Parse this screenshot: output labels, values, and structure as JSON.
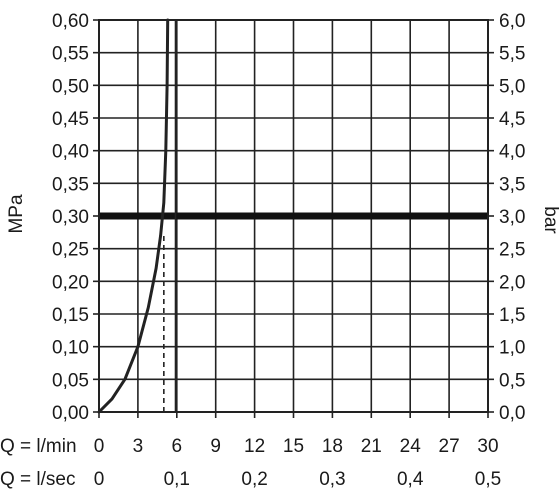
{
  "chart_data": {
    "type": "line",
    "x_unit": "l/min",
    "x_range": [
      0,
      30
    ],
    "x_ticks": [
      0,
      3,
      6,
      9,
      12,
      15,
      18,
      21,
      24,
      27,
      30
    ],
    "x_tick_labels": [
      "0",
      "3",
      "6",
      "9",
      "12",
      "15",
      "18",
      "21",
      "24",
      "27",
      "30"
    ],
    "x_row1_label": "Q = l/min",
    "x_row2_label": "Q = l/sec",
    "x_sec_ticks": [
      0,
      0.1,
      0.2,
      0.3,
      0.4,
      0.5
    ],
    "x_sec_tick_labels": [
      "0",
      "0,1",
      "0,2",
      "0,3",
      "0,4",
      "0,5"
    ],
    "y_left_label": "MPa",
    "y_left_range": [
      0,
      0.6
    ],
    "y_left_ticks": [
      0,
      0.05,
      0.1,
      0.15,
      0.2,
      0.25,
      0.3,
      0.35,
      0.4,
      0.45,
      0.5,
      0.55,
      0.6
    ],
    "y_left_tick_labels": [
      "0,00",
      "0,05",
      "0,10",
      "0,15",
      "0,20",
      "0,25",
      "0,30",
      "0,35",
      "0,40",
      "0,45",
      "0,50",
      "0,55",
      "0,60"
    ],
    "y_right_label": "bar",
    "y_right_ticks": [
      0,
      0.5,
      1,
      1.5,
      2,
      2.5,
      3,
      3.5,
      4,
      4.5,
      5,
      5.5,
      6
    ],
    "y_right_tick_labels": [
      "0,0",
      "0,5",
      "1,0",
      "1,5",
      "2,0",
      "2,5",
      "3,0",
      "3,5",
      "4,0",
      "4,5",
      "5,0",
      "5,5",
      "6,0"
    ],
    "grid": true,
    "series": [
      {
        "style": "solid-curve",
        "points": [
          [
            0,
            0
          ],
          [
            1,
            0.02
          ],
          [
            2,
            0.05
          ],
          [
            3,
            0.1
          ],
          [
            3.8,
            0.16
          ],
          [
            4.4,
            0.22
          ],
          [
            4.75,
            0.27
          ],
          [
            5.0,
            0.32
          ],
          [
            5.15,
            0.4
          ],
          [
            5.25,
            0.5
          ],
          [
            5.3,
            0.6
          ]
        ]
      }
    ],
    "reference_lines": [
      {
        "orientation": "horizontal",
        "value": 0.3,
        "style": "thick"
      },
      {
        "orientation": "vertical",
        "value": 5.0,
        "from": 0,
        "to": 0.27,
        "style": "dashed"
      },
      {
        "orientation": "vertical",
        "value": 5.9,
        "from": 0,
        "to": 0.6,
        "style": "thin"
      }
    ]
  }
}
